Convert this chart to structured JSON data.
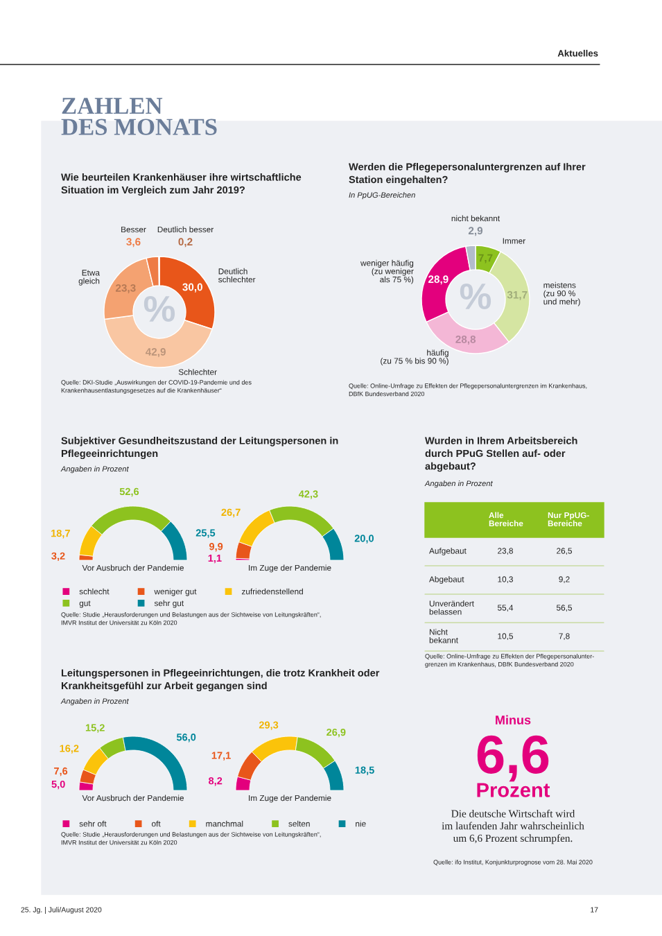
{
  "chart_data": [
    {
      "type": "other",
      "title": "ZAHLEN\nDES MONATS",
      "annotations": [
        "Aktuelles",
        "25. Jg. | Juli/August 2020",
        "17"
      ]
    },
    {
      "type": "donut",
      "title": "Wie beurteilen Krankenhäuser ihre wirtschaftliche\nSituation im Vergleich zum Jahr 2019?",
      "ylabel": "%",
      "categories": [
        "Deutlich\nschlechter",
        "Schlechter",
        "Etwa\ngleich",
        "Besser",
        "Deutlich besser"
      ],
      "values": [
        30.0,
        42.9,
        23.3,
        3.6,
        0.2
      ],
      "value_labels": [
        "30,0",
        "42,9",
        "23,3",
        "3,6",
        "0,2"
      ],
      "colors": [
        "#e8561a",
        "#f9c6a2",
        "#f4a271",
        "#ee7b45",
        "#f2905f"
      ],
      "annotations": [
        "Quelle: DKI-Studie „Auswirkungen der COVID-19-Pandemie und des\nKrankenhausentlastungsgesetzes auf die Krankenhäuser“"
      ]
    },
    {
      "type": "donut",
      "title": "Werden die Pflegepersonaluntergrenzen auf Ihrer\nStation eingehalten?",
      "subtitle": "In PpUG-Bereichen",
      "ylabel": "%",
      "categories": [
        "Immer",
        "meistens\n(zu 90 %\nund mehr)",
        "häufig\n(zu 75 % bis 90 %)",
        "weniger häufig\n(zu weniger\nals 75 %)",
        "nicht bekannt"
      ],
      "values": [
        7.7,
        31.7,
        28.8,
        28.9,
        2.9
      ],
      "value_labels": [
        "7,7",
        "31,7",
        "28,8",
        "28,9",
        "2,9"
      ],
      "colors": [
        "#8dc21f",
        "#d5e5a2",
        "#f4b7d6",
        "#e3007d",
        "#b3bccb"
      ],
      "annotations": [
        "Quelle: Online-Umfrage zu Effekten der Pflegepersonaluntergrenzen im Krankenhaus,\nDBfK Bundesverband 2020"
      ]
    },
    {
      "type": "donut",
      "title": "Subjektiver Gesundheitszustand der Leitungspersonen in\nPflegeeinrichtungen",
      "subtitle": "Angaben in Prozent",
      "categories": [
        "schlecht",
        "weniger gut",
        "zufriedenstellend",
        "gut",
        "sehr gut"
      ],
      "colors": [
        "#e3007d",
        "#e8561a",
        "#fbc30a",
        "#8dc21f",
        "#00869a"
      ],
      "series": [
        {
          "name": "Vor Ausbruch der Pandemie",
          "values": [
            null,
            3.2,
            18.7,
            52.6,
            25.5
          ],
          "value_labels": [
            null,
            "3,2",
            "18,7",
            "52,6",
            "25,5"
          ]
        },
        {
          "name": "Im Zuge der Pandemie",
          "values": [
            1.1,
            9.9,
            26.7,
            42.3,
            20.0
          ],
          "value_labels": [
            "1,1",
            "9,9",
            "26,7",
            "42,3",
            "20,0"
          ]
        }
      ],
      "legend": "bottom",
      "annotations": [
        "Quelle: Studie „Herausforderungen und Belastungen aus der Sichtweise von Leitungskräften“,\nIMVR Institut der Universität zu Köln 2020"
      ]
    },
    {
      "type": "donut",
      "title": "Leitungspersonen in Pflegeeinrichtungen, die trotz Krankheit oder\nKrankheitsgefühl zur Arbeit gegangen sind",
      "subtitle": "Angaben in Prozent",
      "categories": [
        "sehr oft",
        "oft",
        "manchmal",
        "selten",
        "nie"
      ],
      "colors": [
        "#e3007d",
        "#e8561a",
        "#fbc30a",
        "#8dc21f",
        "#00869a"
      ],
      "series": [
        {
          "name": "Vor Ausbruch der Pandemie",
          "values": [
            5.0,
            7.6,
            16.2,
            15.2,
            56.0
          ],
          "value_labels": [
            "5,0",
            "7,6",
            "16,2",
            "15,2",
            "56,0"
          ]
        },
        {
          "name": "Im Zuge der Pandemie",
          "values": [
            8.2,
            17.1,
            29.3,
            26.9,
            18.5
          ],
          "value_labels": [
            "8,2",
            "17,1",
            "29,3",
            "26,9",
            "18,5"
          ]
        }
      ],
      "legend": "bottom",
      "annotations": [
        "Quelle: Studie „Herausforderungen und Belastungen aus der Sichtweise von Leitungskräften“,\nIMVR Institut der Universität zu Köln 2020"
      ]
    },
    {
      "type": "other",
      "title": "Wurden in Ihrem Arbeitsbereich\ndurch PPuG Stellen auf- oder\nabgebaut?",
      "subtitle": "Angaben in Prozent",
      "categories": [
        "Aufgebaut",
        "Abgebaut",
        "Unverändert\nbelassen",
        "Nicht\nbekannt"
      ],
      "series": [
        {
          "name": "Alle\nBereiche",
          "values": [
            23.8,
            10.3,
            55.4,
            10.5
          ],
          "value_labels": [
            "23,8",
            "10,3",
            "55,4",
            "10,5"
          ]
        },
        {
          "name": "Nur PpUG-\nBereiche",
          "values": [
            26.5,
            9.2,
            56.5,
            7.8
          ],
          "value_labels": [
            "26,5",
            "9,2",
            "56,5",
            "7,8"
          ]
        }
      ],
      "annotations": [
        "Quelle: Online-Umfrage zu Effekten der Pflegepersonalunter-\ngrenzen im Krankenhaus, DBfK Bundesverband 2020"
      ]
    },
    {
      "type": "other",
      "title": "Minus",
      "values": [
        6.6
      ],
      "value_labels": [
        "6,6"
      ],
      "subtitle": "Prozent",
      "annotations": [
        "Die deutsche Wirtschaft wird\nim laufenden Jahr wahrscheinlich\num 6,6 Prozent schrumpfen.",
        "Quelle: ifo Institut, Konjunkturprognose vom 28. Mai 2020"
      ]
    }
  ]
}
